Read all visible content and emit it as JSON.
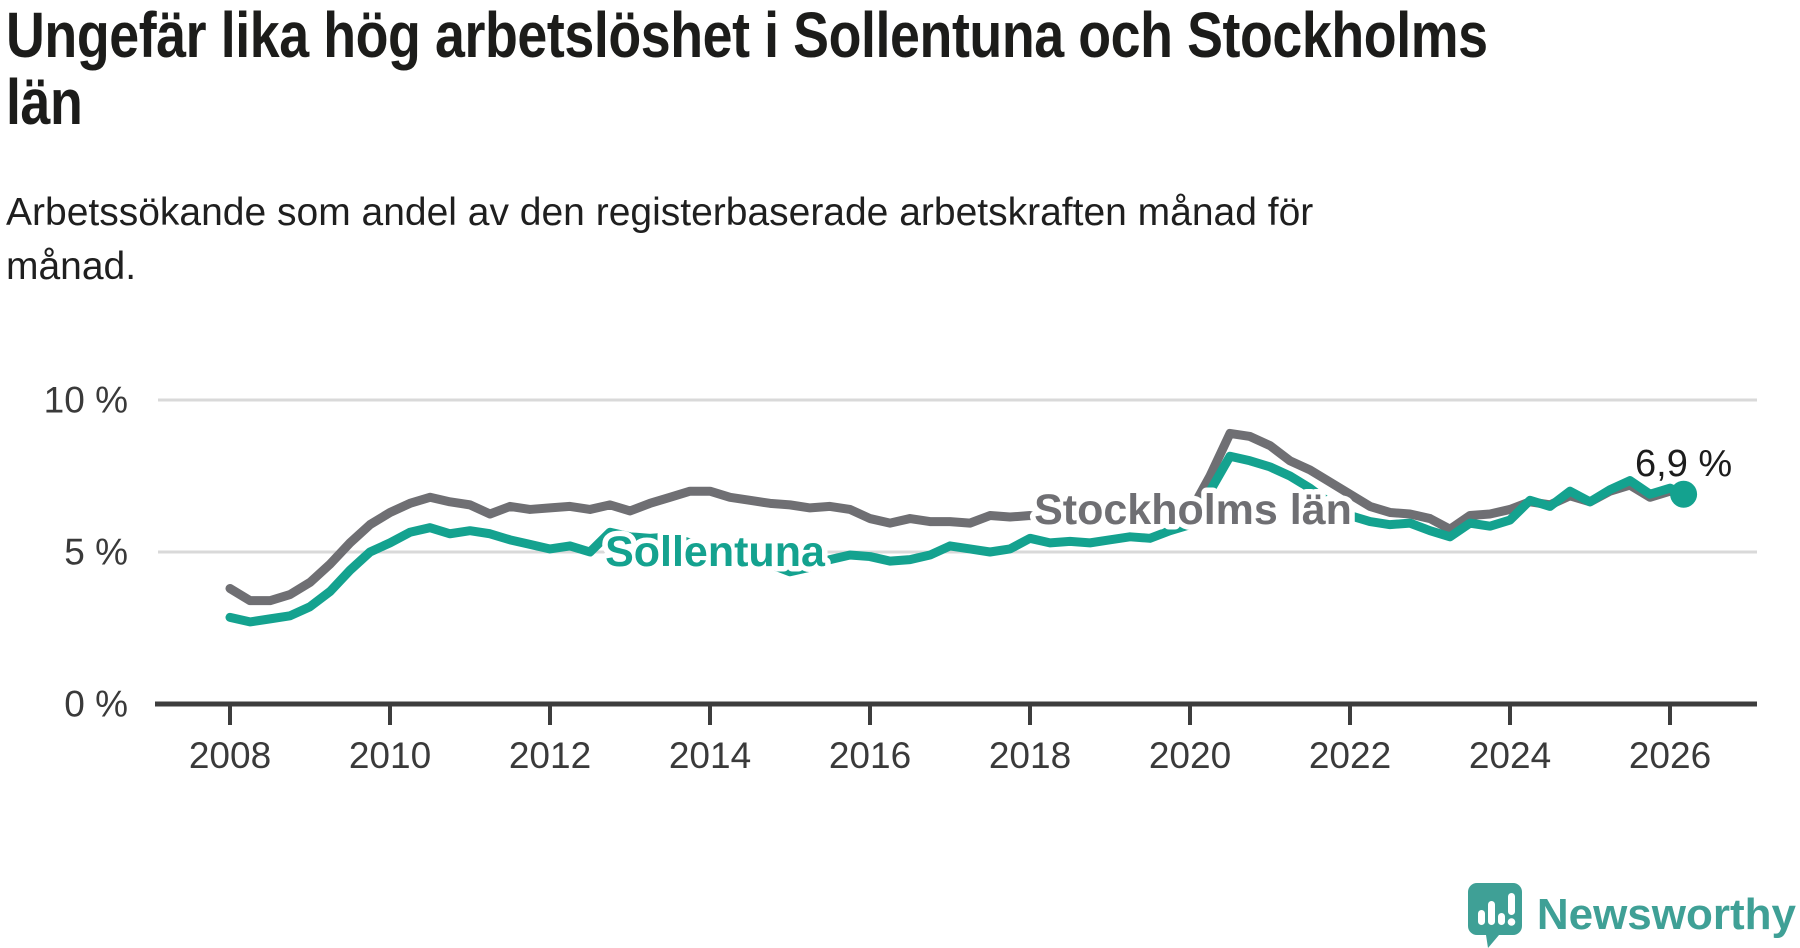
{
  "header": {
    "title": "Ungefär lika hög arbetslöshet i Sollentuna och Stockholms\nlän",
    "subtitle": "Arbetssökande som andel av den registerbaserade arbetskraften månad för\nmånad."
  },
  "branding": {
    "logo_text": "Newsworthy",
    "logo_color": "#3fa096",
    "logo_icon": "speech-bubble-with-bar-chart-and-exclamation"
  },
  "colors": {
    "sollentuna_teal": "#14a28f",
    "stockholm_gray": "#6f6f73",
    "gridline": "#d9d9d9",
    "axis": "#3d3d3d",
    "tick_label": "#3a3a3a",
    "annotation_text": "#1c1c1c",
    "title_text": "#1c1c1a"
  },
  "chart_data": {
    "type": "line",
    "title": "Ungefär lika hög arbetslöshet i Sollentuna och Stockholms län",
    "subtitle": "Arbetssökande som andel av den registerbaserade arbetskraften månad för månad.",
    "unit": "%",
    "xlabel": "",
    "ylabel": "",
    "grid": "horizontal-only",
    "legend_position": "inline-labels-on-lines",
    "ylim": [
      0,
      10.5
    ],
    "xlim": [
      2007.1,
      2027.2
    ],
    "y_ticks": [
      {
        "label": "0 %",
        "value": 0
      },
      {
        "label": "5 %",
        "value": 5
      },
      {
        "label": "10 %",
        "value": 10
      }
    ],
    "x_ticks": [
      2008,
      2010,
      2012,
      2014,
      2016,
      2018,
      2020,
      2022,
      2024,
      2026
    ],
    "end_annotation": {
      "text": "6,9 %",
      "series": "Sollentuna",
      "x": 2026.17,
      "value": 6.9
    },
    "x": [
      2008.0,
      2008.25,
      2008.5,
      2008.75,
      2009.0,
      2009.25,
      2009.5,
      2009.75,
      2010.0,
      2010.25,
      2010.5,
      2010.75,
      2011.0,
      2011.25,
      2011.5,
      2011.75,
      2012.0,
      2012.25,
      2012.5,
      2012.75,
      2013.0,
      2013.25,
      2013.5,
      2013.75,
      2014.0,
      2014.25,
      2014.5,
      2014.75,
      2015.0,
      2015.25,
      2015.5,
      2015.75,
      2016.0,
      2016.25,
      2016.5,
      2016.75,
      2017.0,
      2017.25,
      2017.5,
      2017.75,
      2018.0,
      2018.25,
      2018.5,
      2018.75,
      2019.0,
      2019.25,
      2019.5,
      2019.75,
      2020.0,
      2020.25,
      2020.5,
      2020.75,
      2021.0,
      2021.25,
      2021.5,
      2021.75,
      2022.0,
      2022.25,
      2022.5,
      2022.75,
      2023.0,
      2023.25,
      2023.5,
      2023.75,
      2024.0,
      2024.25,
      2024.5,
      2024.75,
      2025.0,
      2025.25,
      2025.5,
      2025.75,
      2026.0,
      2026.17
    ],
    "series": [
      {
        "name": "Stockholms län",
        "color": "#6f6f73",
        "label_inline": true,
        "values": [
          3.8,
          3.4,
          3.4,
          3.6,
          4.0,
          4.6,
          5.3,
          5.9,
          6.3,
          6.6,
          6.8,
          6.65,
          6.55,
          6.25,
          6.5,
          6.4,
          6.45,
          6.5,
          6.4,
          6.55,
          6.35,
          6.6,
          6.8,
          7.0,
          7.0,
          6.8,
          6.7,
          6.6,
          6.55,
          6.45,
          6.5,
          6.4,
          6.1,
          5.95,
          6.1,
          6.0,
          6.0,
          5.95,
          6.2,
          6.15,
          6.2,
          6.1,
          6.0,
          6.1,
          6.1,
          6.15,
          6.2,
          6.25,
          6.3,
          7.5,
          8.9,
          8.8,
          8.5,
          8.0,
          7.7,
          7.3,
          6.9,
          6.5,
          6.3,
          6.25,
          6.1,
          5.75,
          6.2,
          6.25,
          6.4,
          6.65,
          6.55,
          6.85,
          6.65,
          7.0,
          7.2,
          6.8,
          7.0,
          6.9
        ]
      },
      {
        "name": "Sollentuna",
        "color": "#14a28f",
        "label_inline": true,
        "end_dot": true,
        "values": [
          2.85,
          2.7,
          2.8,
          2.9,
          3.2,
          3.7,
          4.4,
          5.0,
          5.3,
          5.65,
          5.8,
          5.6,
          5.7,
          5.6,
          5.4,
          5.25,
          5.1,
          5.2,
          5.0,
          5.65,
          5.5,
          5.45,
          5.5,
          5.3,
          5.2,
          5.0,
          4.9,
          4.6,
          4.35,
          4.5,
          4.75,
          4.9,
          4.85,
          4.7,
          4.75,
          4.9,
          5.2,
          5.1,
          5.0,
          5.1,
          5.45,
          5.3,
          5.35,
          5.3,
          5.4,
          5.5,
          5.45,
          5.7,
          5.9,
          7.0,
          8.15,
          8.0,
          7.8,
          7.5,
          7.1,
          6.6,
          6.2,
          6.0,
          5.9,
          5.95,
          5.7,
          5.5,
          5.95,
          5.85,
          6.05,
          6.7,
          6.5,
          7.0,
          6.65,
          7.05,
          7.35,
          6.9,
          7.1,
          6.9
        ]
      }
    ]
  }
}
